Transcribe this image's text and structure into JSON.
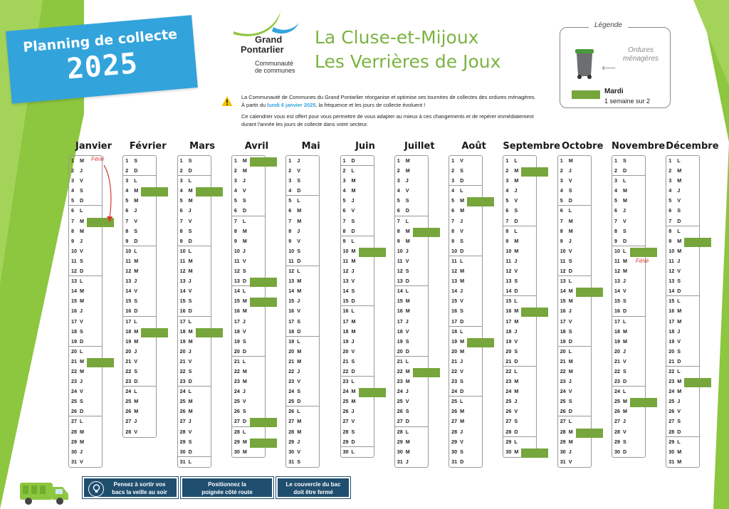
{
  "banner": {
    "line1": "Planning de collecte",
    "year": "2025"
  },
  "logo": {
    "line1": "Grand",
    "line2": "Pontarlier",
    "line3": "Communauté",
    "line4": "de communes"
  },
  "title": {
    "line1": "La Cluse-et-Mijoux",
    "line2": "Les Verrières de Joux"
  },
  "legend": {
    "title": "Légende",
    "waste_type_line1": "Ordures",
    "waste_type_line2": "ménagères",
    "day": "Mardi",
    "frequency": "1 semaine sur 2",
    "collection_color": "#76a63c"
  },
  "notice": {
    "p1_part1": "La Communauté de Communes du Grand Pontarlier réorganise et optimise ses tournées de collectes des ordures ménagères. À partir du ",
    "p1_highlight": "lundi 6 janvier 2025",
    "p1_part2": ", la fréquence et les jours de collecte évoluent !",
    "p2": "Ce calendrier vous est offert pour vous permettre de vous adapter au mieux à ces changements et de repérer immédiatement durant l'année les jours de collecte dans votre secteur."
  },
  "ferie_label": "Férié",
  "months": [
    {
      "name": "Janvier",
      "first_dow": 2,
      "days": 31,
      "collect": [
        7,
        21
      ],
      "ferie": [
        1
      ]
    },
    {
      "name": "Février",
      "first_dow": 5,
      "days": 28,
      "collect": [
        4,
        18
      ]
    },
    {
      "name": "Mars",
      "first_dow": 5,
      "days": 31,
      "collect": [
        4,
        18
      ]
    },
    {
      "name": "Avril",
      "first_dow": 1,
      "days": 30,
      "collect": [
        1,
        13,
        15,
        27,
        29
      ]
    },
    {
      "name": "Mai",
      "first_dow": 3,
      "days": 31,
      "collect": []
    },
    {
      "name": "Juin",
      "first_dow": 6,
      "days": 30,
      "collect": [
        10,
        24
      ]
    },
    {
      "name": "Juillet",
      "first_dow": 1,
      "days": 31,
      "collect": [
        8,
        22
      ]
    },
    {
      "name": "Août",
      "first_dow": 4,
      "days": 31,
      "collect": [
        5,
        19
      ]
    },
    {
      "name": "Septembre",
      "first_dow": 0,
      "days": 30,
      "collect": [
        2,
        16,
        30
      ]
    },
    {
      "name": "Octobre",
      "first_dow": 2,
      "days": 31,
      "collect": [
        14,
        28
      ]
    },
    {
      "name": "Novembre",
      "first_dow": 5,
      "days": 30,
      "collect": [
        10,
        25
      ],
      "ferie": [
        11
      ]
    },
    {
      "name": "Décembre",
      "first_dow": 0,
      "days": 31,
      "collect": [
        9,
        23
      ]
    }
  ],
  "day_letters": [
    "L",
    "M",
    "M",
    "J",
    "V",
    "S",
    "D"
  ],
  "tips": [
    {
      "line1": "Pensez à sortir vos",
      "line2": "bacs la veille au soir"
    },
    {
      "line1": "Positionnez  la",
      "line2": "poignée côté route"
    },
    {
      "line1": "Le couvercle du bac",
      "line2": "doit être fermé"
    }
  ],
  "colors": {
    "green": "#8dc63f",
    "blue": "#33a3dc",
    "navy": "#1f4e6f",
    "title_green": "#7cb342",
    "ferie_red": "#d63a2f"
  }
}
